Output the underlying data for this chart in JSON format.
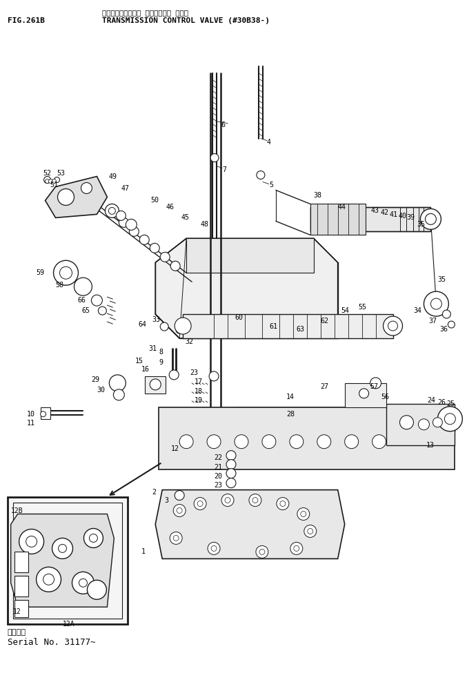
{
  "title_jp": "トランスミッション コントロール バルブ",
  "title_en": "TRANSMISSION CONTROL VALVE (#30B38-)",
  "fig_num": "FIG.261B",
  "serial_jp": "適用号機",
  "serial_en": "Serial No. 31177~",
  "bg_color": "#ffffff",
  "line_color": "#1a1a1a",
  "text_color": "#000000",
  "fig_width": 6.77,
  "fig_height": 9.98
}
